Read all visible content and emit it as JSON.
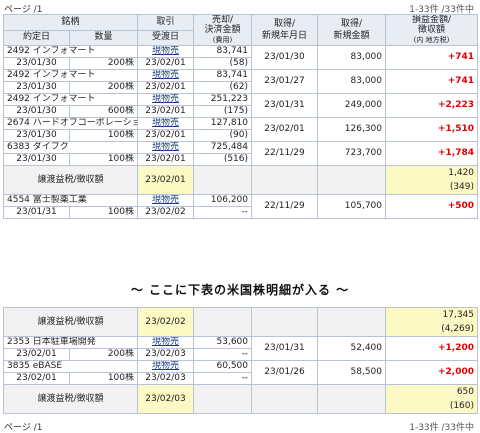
{
  "pager_top": {
    "left": "ページ /1",
    "right": "1-33件 /33件中"
  },
  "pager_bottom": {
    "left": "ページ /1",
    "right": "1-33件 /33件中"
  },
  "header": {
    "row1": [
      "銘柄",
      "取引",
      "売却/\n決済金額",
      "取得/\n新規年月日",
      "取得/\n新規金額",
      "損益金額/\n徴収額"
    ],
    "row2": [
      "約定日",
      "数量",
      "受渡日",
      "(費用)",
      "",
      "",
      "(内 地方税)"
    ]
  },
  "header_flat": {
    "meigara": "銘柄",
    "torihiki": "取引",
    "baikyaku": "売却/",
    "kessai": "決済金額",
    "shutoku": "取得/",
    "shinki_ymd": "新規年月日",
    "shutoku2": "取得/",
    "shinki_kin": "新規金額",
    "soneki": "損益金額/",
    "choshu": "徴収額",
    "yakujo": "約定日",
    "suryo": "数量",
    "ukewatashi": "受渡日",
    "hiyo": "(費用)",
    "chihou": "(内 地方税)"
  },
  "section1": [
    {
      "name": "2492 インフォマート",
      "trade": "現物売",
      "amount": "83,741",
      "acq_date": "23/01/30",
      "acq_amount": "83,000",
      "profit": "+741",
      "exec_date": "23/01/30",
      "qty": "200株",
      "deliv": "23/02/01",
      "fee": "(58)"
    },
    {
      "name": "2492 インフォマート",
      "trade": "現物売",
      "amount": "83,741",
      "acq_date": "23/01/27",
      "acq_amount": "83,000",
      "profit": "+741",
      "exec_date": "23/01/30",
      "qty": "200株",
      "deliv": "23/02/01",
      "fee": "(62)"
    },
    {
      "name": "2492 インフォマート",
      "trade": "現物売",
      "amount": "251,223",
      "acq_date": "23/01/31",
      "acq_amount": "249,000",
      "profit": "+2,223",
      "exec_date": "23/01/30",
      "qty": "600株",
      "deliv": "23/02/01",
      "fee": "(175)"
    },
    {
      "name": "2674 ハードオフコーポレーション",
      "trade": "現物売",
      "amount": "127,810",
      "acq_date": "23/02/01",
      "acq_amount": "126,300",
      "profit": "+1,510",
      "exec_date": "23/01/30",
      "qty": "100株",
      "deliv": "23/02/01",
      "fee": "(90)"
    },
    {
      "name": "6383 ダイフク",
      "trade": "現物売",
      "amount": "725,484",
      "acq_date": "22/11/29",
      "acq_amount": "723,700",
      "profit": "+1,784",
      "exec_date": "23/01/30",
      "qty": "100株",
      "deliv": "23/02/01",
      "fee": "(516)"
    }
  ],
  "summary1": {
    "label": "譲渡益税/徴収額",
    "date": "23/02/01",
    "amount": "1,420",
    "local": "(349)"
  },
  "section1b": [
    {
      "name": "4554 富士製薬工業",
      "trade": "現物売",
      "amount": "106,200",
      "acq_date": "22/11/29",
      "acq_amount": "105,700",
      "profit": "+500",
      "exec_date": "23/01/31",
      "qty": "100株",
      "deliv": "23/02/02",
      "fee": "--"
    }
  ],
  "note": "～ ここに下表の米国株明細が入る ～",
  "summary2": {
    "label": "譲渡益税/徴収額",
    "date": "23/02/02",
    "amount": "17,345",
    "local": "(4,269)"
  },
  "section2": [
    {
      "name": "2353 日本駐車場開発",
      "trade": "現物売",
      "amount": "53,600",
      "acq_date": "23/01/31",
      "acq_amount": "52,400",
      "profit": "+1,200",
      "exec_date": "23/02/01",
      "qty": "200株",
      "deliv": "23/02/03",
      "fee": "--"
    },
    {
      "name": "3835 eBASE",
      "trade": "現物売",
      "amount": "60,500",
      "acq_date": "23/01/26",
      "acq_amount": "58,500",
      "profit": "+2,000",
      "exec_date": "23/02/01",
      "qty": "100株",
      "deliv": "23/02/03",
      "fee": "--"
    }
  ],
  "summary3": {
    "label": "譲渡益税/徴収額",
    "date": "23/02/03",
    "amount": "650",
    "local": "(160)"
  },
  "colors": {
    "border": "#b8c4d6",
    "header_bg": "#e8edf5",
    "profit": "#e00000",
    "highlight": "#fdf9c4",
    "summary_bg": "#f2f2f2"
  }
}
